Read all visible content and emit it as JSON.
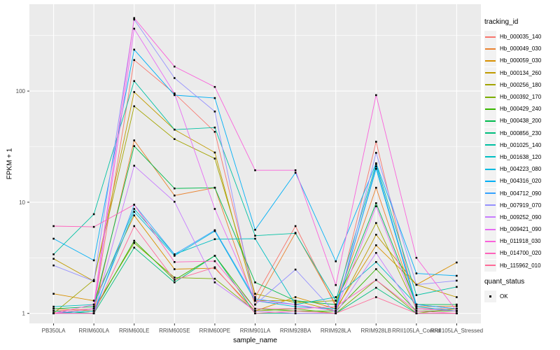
{
  "chart_data": {
    "type": "line",
    "title": "",
    "xlabel": "sample_name",
    "ylabel": "FPKM + 1",
    "y_scale": "log10",
    "ylim": [
      0.81,
      600
    ],
    "y_major_ticks": [
      1,
      10,
      100
    ],
    "y_minor_ticks": [
      3.162,
      31.623,
      316.228
    ],
    "grid": "major+minor white on gray panel",
    "legend_position": "right",
    "point_shape": "filled-square",
    "point_color": "#000000",
    "categories": [
      "PB350LA",
      "RRIM600LA",
      "RRIM600LE",
      "RRIM600SE",
      "RRIM600PE",
      "RRIM901LA",
      "RRIM928BA",
      "RRIM928LA",
      "RRIM928LB",
      "RRII105LA_Control",
      "RRII105LA_Stressed"
    ],
    "series": [
      {
        "name": "Hb_000035_140",
        "color": "#F8766D",
        "values": [
          1.05,
          1.1,
          190,
          95,
          43,
          1.4,
          6.1,
          1.15,
          35,
          1.1,
          1.1
        ]
      },
      {
        "name": "Hb_000049_030",
        "color": "#EA8331",
        "values": [
          1.1,
          1.05,
          36,
          11.5,
          13.5,
          1.2,
          5.3,
          1.2,
          13.5,
          1.15,
          1.16
        ]
      },
      {
        "name": "Hb_000059_030",
        "color": "#D89000",
        "values": [
          1.5,
          1.3,
          7.6,
          2.5,
          2.55,
          1.05,
          1.4,
          1.1,
          4.1,
          1.81,
          2.87
        ]
      },
      {
        "name": "Hb_000134_260",
        "color": "#C09B00",
        "values": [
          3.1,
          1.95,
          98,
          45,
          28,
          1.3,
          1.3,
          1.05,
          5.1,
          1.81,
          1.4
        ]
      },
      {
        "name": "Hb_000256_180",
        "color": "#A3A500",
        "values": [
          1.0,
          2.0,
          73,
          37,
          24.7,
          1.5,
          1.25,
          1.3,
          6.5,
          1.1,
          1.05
        ]
      },
      {
        "name": "Hb_000392_170",
        "color": "#7CAE00",
        "values": [
          1.0,
          1.1,
          4.3,
          2.1,
          2.05,
          1.05,
          1.1,
          1.0,
          2.0,
          1.0,
          1.1
        ]
      },
      {
        "name": "Hb_000429_240",
        "color": "#39B600",
        "values": [
          1.0,
          1.05,
          4.5,
          2.0,
          3.3,
          1.1,
          1.05,
          1.05,
          2.5,
          1.05,
          1.05
        ]
      },
      {
        "name": "Hb_000438_200",
        "color": "#00BB4E",
        "values": [
          1.1,
          1.15,
          32,
          13.3,
          13.5,
          1.9,
          1.3,
          1.2,
          9.8,
          1.2,
          1.2
        ]
      },
      {
        "name": "Hb_000856_230",
        "color": "#00BF7D",
        "values": [
          1.05,
          1.0,
          3.9,
          1.9,
          3.3,
          1.0,
          1.0,
          1.0,
          1.7,
          1.0,
          1.0
        ]
      },
      {
        "name": "Hb_001025_140",
        "color": "#00C1A3",
        "values": [
          3.4,
          7.8,
          123,
          45,
          47,
          5.0,
          5.25,
          1.3,
          22,
          1.46,
          1.73
        ]
      },
      {
        "name": "Hb_001638_120",
        "color": "#00BFC4",
        "values": [
          1.15,
          1.2,
          8.7,
          3.4,
          4.65,
          4.7,
          1.2,
          1.4,
          2.9,
          1.2,
          1.1
        ]
      },
      {
        "name": "Hb_004223_080",
        "color": "#00BAE0",
        "values": [
          1.0,
          1.05,
          8.2,
          3.3,
          5.5,
          1.3,
          1.15,
          1.1,
          20,
          1.15,
          1.05
        ]
      },
      {
        "name": "Hb_004316_020",
        "color": "#00B0F6",
        "values": [
          4.7,
          3.0,
          236,
          92,
          86.5,
          5.65,
          18.4,
          2.94,
          22.4,
          2.29,
          2.18
        ]
      },
      {
        "name": "Hb_004712_090",
        "color": "#35A2FF",
        "values": [
          1.0,
          1.0,
          9.5,
          3.4,
          5.6,
          1.35,
          1.2,
          1.05,
          21,
          1.2,
          1.1
        ]
      },
      {
        "name": "Hb_007919_070",
        "color": "#9590FF",
        "values": [
          2.7,
          1.95,
          440,
          131,
          65.5,
          1.2,
          2.48,
          1.0,
          27.8,
          1.81,
          1.97
        ]
      },
      {
        "name": "Hb_009252_090",
        "color": "#C77CFF",
        "values": [
          1.0,
          1.0,
          21.3,
          10.1,
          1.9,
          1.05,
          1.0,
          1.0,
          3.5,
          1.0,
          1.0
        ]
      },
      {
        "name": "Hb_009421_090",
        "color": "#E76BF3",
        "values": [
          1.0,
          1.1,
          364,
          95,
          8.7,
          1.3,
          1.2,
          1.05,
          9.2,
          1.1,
          1.05
        ]
      },
      {
        "name": "Hb_011918_030",
        "color": "#FA62DB",
        "values": [
          1.0,
          1.2,
          454,
          166,
          109,
          19.4,
          19.4,
          1.8,
          92,
          3.16,
          1.05
        ]
      },
      {
        "name": "Hb_014700_020",
        "color": "#FF62BC",
        "values": [
          6.1,
          6.0,
          9.5,
          2.9,
          2.95,
          1.1,
          1.1,
          1.15,
          2.0,
          1.05,
          1.0
        ]
      },
      {
        "name": "Hb_115962_010",
        "color": "#FF6A98",
        "values": [
          1.0,
          1.0,
          6.1,
          2.0,
          2.6,
          1.0,
          1.05,
          1.0,
          1.4,
          1.0,
          1.0
        ]
      }
    ],
    "legend": {
      "color_title": "tracking_id",
      "shape_title": "quant_status",
      "shape_items": [
        {
          "label": "OK",
          "shape": "filled-square",
          "color": "#000000"
        }
      ]
    }
  },
  "style": {
    "panel_bg": "#EBEBEB",
    "grid_color": "#FFFFFF",
    "tick_label_color": "#4D4D4D",
    "axis_title_color": "#000000",
    "legend_key_bg": "#F2F2F2",
    "background": "#FFFFFF"
  }
}
